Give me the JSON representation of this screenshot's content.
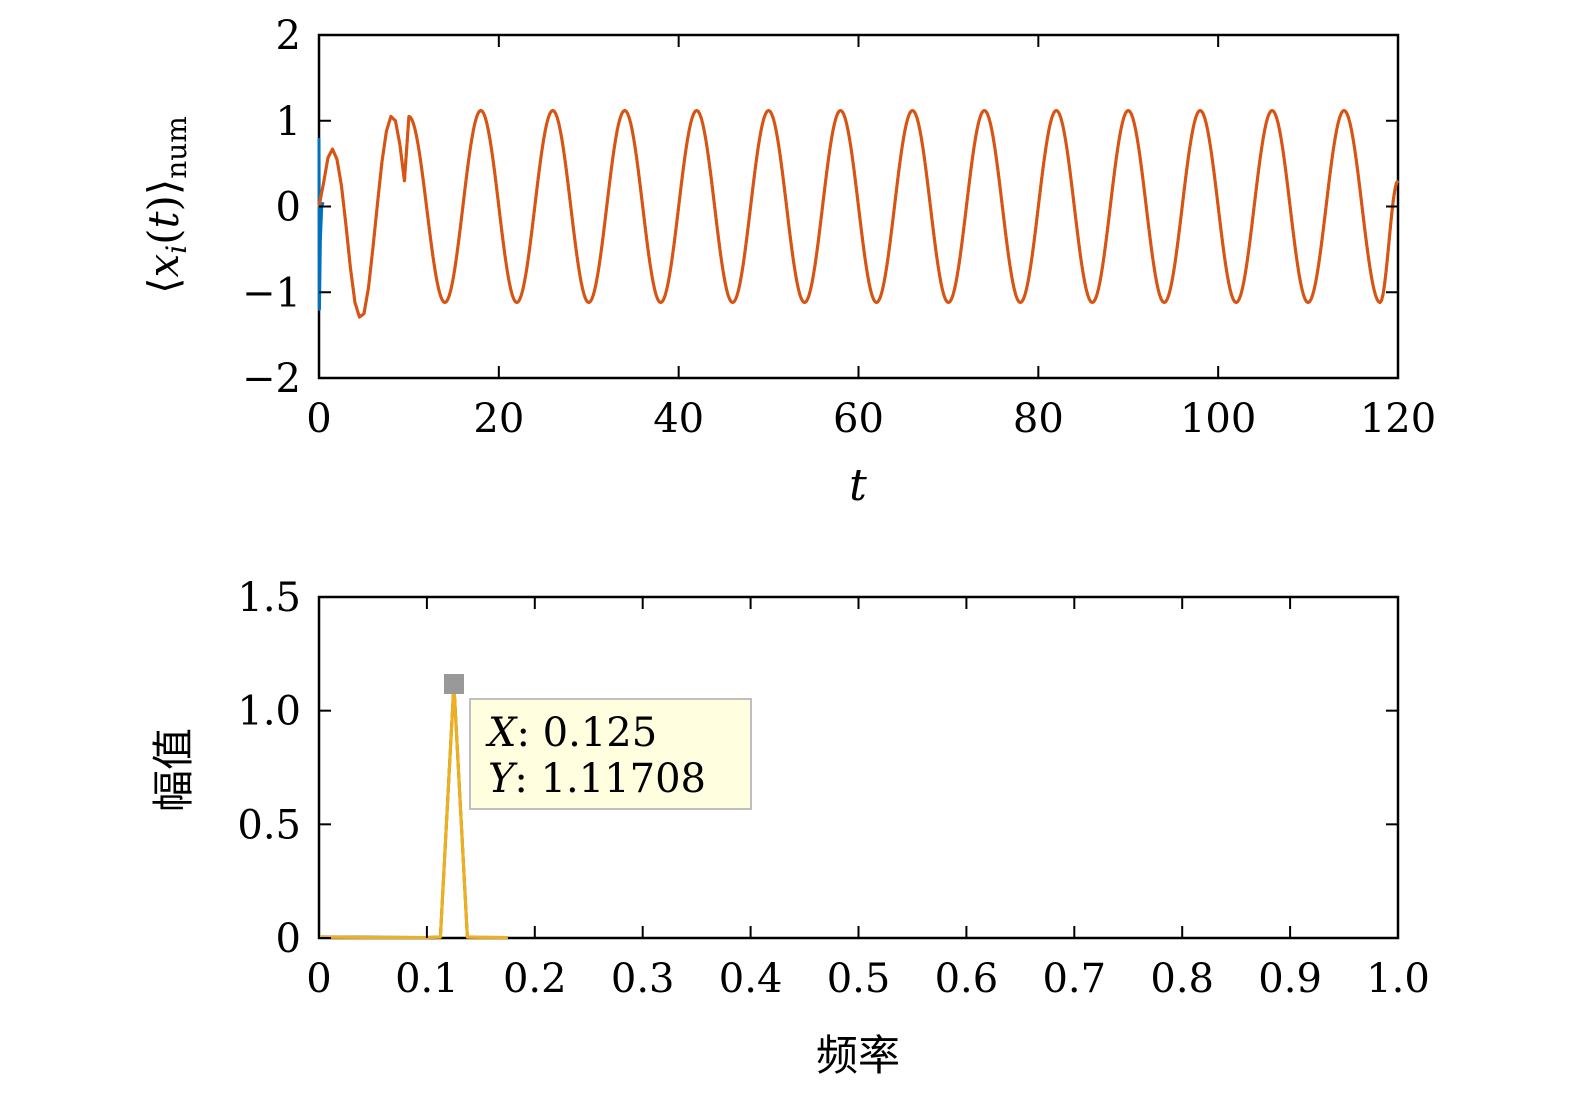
{
  "chart_data": [
    {
      "type": "line",
      "xlabel": "t",
      "ylabel": "⟨x_i(t)⟩_num",
      "xlim": [
        0,
        120
      ],
      "ylim": [
        -2,
        2
      ],
      "xticks": [
        "0",
        "20",
        "40",
        "60",
        "80",
        "100",
        "120"
      ],
      "yticks": [
        "−2",
        "−1",
        "0",
        "1",
        "2"
      ],
      "grid": false,
      "series": [
        {
          "color": "#0072BD",
          "x": [
            0,
            0.05,
            0.15,
            0.3,
            0.45
          ],
          "y": [
            0.8,
            -1.2,
            -0.4,
            0.0,
            0.05
          ]
        },
        {
          "color": "#77AC30",
          "x": [
            0,
            0.5,
            1.0,
            1.5,
            2.0,
            2.5,
            3.0,
            3.5,
            4.0,
            4.5,
            5.0,
            5.5,
            6.0,
            6.5,
            7.0,
            7.5,
            8.0,
            8.5,
            9.0,
            9.5,
            10.0,
            14.0,
            18.0,
            22.0,
            26.0,
            30.0,
            34.0,
            38.0,
            42.0,
            46.0,
            50.0,
            54.0,
            58.0,
            62.0,
            66.0,
            70.0,
            74.0,
            78.0,
            82.0,
            86.0,
            90.0,
            94.0,
            98.0,
            102.0,
            106.0,
            110.0,
            114.0,
            118.0,
            120.0
          ],
          "y": [
            0.0,
            0.27,
            0.57,
            0.67,
            0.55,
            0.24,
            -0.22,
            -0.72,
            -1.12,
            -1.29,
            -1.25,
            -0.95,
            -0.48,
            0.03,
            0.52,
            0.88,
            1.05,
            1.0,
            0.72,
            0.3,
            1.05,
            -1.12,
            1.12,
            -1.12,
            1.12,
            -1.12,
            1.12,
            -1.12,
            1.12,
            -1.12,
            1.12,
            -1.12,
            1.12,
            -1.12,
            1.12,
            -1.12,
            1.12,
            -1.12,
            1.12,
            -1.12,
            1.12,
            -1.12,
            1.12,
            -1.12,
            1.12,
            -1.12,
            1.12,
            -1.12,
            0.3
          ]
        },
        {
          "color": "#EDB120",
          "x": [
            0,
            0.5,
            1.0,
            1.5,
            2.0,
            2.5,
            3.0,
            3.5,
            4.0,
            4.5,
            5.0,
            5.5,
            6.0,
            6.5,
            7.0,
            7.5,
            8.0,
            8.5,
            9.0,
            9.5,
            10.0,
            14.0,
            18.0,
            22.0,
            26.0,
            30.0,
            34.0,
            38.0,
            42.0,
            46.0,
            50.0,
            54.0,
            58.0,
            62.0,
            66.0,
            70.0,
            74.0,
            78.0,
            82.0,
            86.0,
            90.0,
            94.0,
            98.0,
            102.0,
            106.0,
            110.0,
            114.0,
            118.0,
            120.0
          ],
          "y": [
            0.0,
            0.27,
            0.57,
            0.67,
            0.55,
            0.24,
            -0.22,
            -0.72,
            -1.12,
            -1.29,
            -1.25,
            -0.95,
            -0.48,
            0.03,
            0.52,
            0.88,
            1.05,
            1.0,
            0.72,
            0.3,
            1.05,
            -1.12,
            1.12,
            -1.12,
            1.12,
            -1.12,
            1.12,
            -1.12,
            1.12,
            -1.12,
            1.12,
            -1.12,
            1.12,
            -1.12,
            1.12,
            -1.12,
            1.12,
            -1.12,
            1.12,
            -1.12,
            1.12,
            -1.12,
            1.12,
            -1.12,
            1.12,
            -1.12,
            1.12,
            -1.12,
            0.3
          ]
        },
        {
          "color": "#D95319",
          "x": [
            0,
            0.5,
            1.0,
            1.5,
            2.0,
            2.5,
            3.0,
            3.5,
            4.0,
            4.5,
            5.0,
            5.5,
            6.0,
            6.5,
            7.0,
            7.5,
            8.0,
            8.5,
            9.0,
            9.5,
            10.0,
            14.0,
            18.0,
            22.0,
            26.0,
            30.0,
            34.0,
            38.0,
            42.0,
            46.0,
            50.0,
            54.0,
            58.0,
            62.0,
            66.0,
            70.0,
            74.0,
            78.0,
            82.0,
            86.0,
            90.0,
            94.0,
            98.0,
            102.0,
            106.0,
            110.0,
            114.0,
            118.0,
            120.0
          ],
          "y": [
            0.0,
            0.27,
            0.57,
            0.67,
            0.55,
            0.24,
            -0.22,
            -0.72,
            -1.12,
            -1.29,
            -1.25,
            -0.95,
            -0.48,
            0.03,
            0.52,
            0.88,
            1.05,
            1.0,
            0.72,
            0.3,
            1.05,
            -1.12,
            1.12,
            -1.12,
            1.12,
            -1.12,
            1.12,
            -1.12,
            1.12,
            -1.12,
            1.12,
            -1.12,
            1.12,
            -1.12,
            1.12,
            -1.12,
            1.12,
            -1.12,
            1.12,
            -1.12,
            1.12,
            -1.12,
            1.12,
            -1.12,
            1.12,
            -1.12,
            1.12,
            -1.12,
            0.3
          ]
        }
      ]
    },
    {
      "type": "line",
      "xlabel": "频率",
      "ylabel": "幅值",
      "xlim": [
        0,
        1.0
      ],
      "ylim": [
        0,
        1.5
      ],
      "xticks": [
        "0",
        "0.1",
        "0.2",
        "0.3",
        "0.4",
        "0.5",
        "0.6",
        "0.7",
        "0.8",
        "0.9",
        "1.0"
      ],
      "yticks": [
        "0",
        "0.5",
        "1.0",
        "1.5"
      ],
      "grid": false,
      "series": [
        {
          "color": "#0072BD",
          "x": [
            0,
            0.1,
            0.108
          ],
          "y": [
            0.005,
            0.002,
            0.0
          ]
        },
        {
          "color": "#77AC30",
          "x": [
            0,
            0.05,
            0.1,
            0.1125,
            0.125,
            0.1375,
            0.15,
            0.175
          ],
          "y": [
            0.004,
            0.002,
            0.002,
            0.004,
            1.11708,
            0.004,
            0.003,
            0.002
          ]
        },
        {
          "color": "#D95319",
          "x": [
            0,
            0.05,
            0.1,
            0.1125,
            0.125,
            0.1375,
            0.15,
            0.175
          ],
          "y": [
            0.004,
            0.002,
            0.002,
            0.004,
            1.11708,
            0.004,
            0.003,
            0.002
          ]
        },
        {
          "color": "#EDB120",
          "x": [
            0,
            0.05,
            0.1,
            0.1125,
            0.125,
            0.1375,
            0.15,
            0.175
          ],
          "y": [
            0.004,
            0.002,
            0.002,
            0.004,
            1.11708,
            0.004,
            0.003,
            0.002
          ]
        }
      ],
      "datatip": {
        "x": 0.125,
        "y": 1.11708,
        "x_label": "X",
        "x_value": ": 0.125",
        "y_label": "Y",
        "y_value": ": 1.11708"
      }
    }
  ]
}
